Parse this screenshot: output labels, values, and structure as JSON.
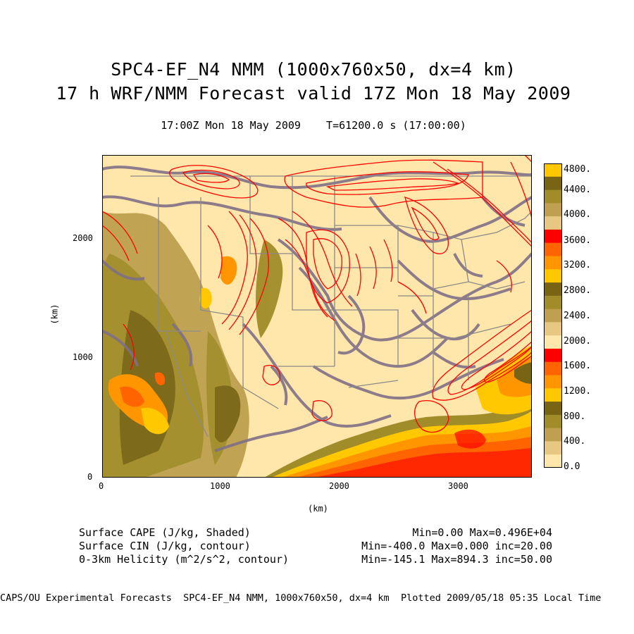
{
  "titles": {
    "line1": "SPC4-EF_N4 NMM (1000x760x50, dx=4 km)",
    "line2": "17 h WRF/NMM Forecast valid 17Z Mon 18 May 2009",
    "line3": "17:00Z Mon 18 May 2009    T=61200.0 s (17:00:00)"
  },
  "axes": {
    "x_label": "(km)",
    "y_label": "(km)",
    "x_ticks": [
      "0",
      "1000",
      "2000",
      "3000"
    ],
    "y_ticks": [
      "0",
      "1000",
      "2000"
    ]
  },
  "colorbar": {
    "labels": [
      "4800.",
      "4400.",
      "4000.",
      "3600.",
      "3200.",
      "2800.",
      "2400.",
      "2000.",
      "1600.",
      "1200.",
      "800.",
      "400.",
      "0.0"
    ],
    "colors_top_to_bottom": [
      "#ffc800",
      "#786414",
      "#a08c28",
      "#bea050",
      "#e6c882",
      "#ff0000",
      "#ff6400",
      "#ff9600",
      "#ffc800",
      "#786414",
      "#a08c28",
      "#bea050",
      "#e6c882",
      "#ffe6aa",
      "#ff0000",
      "#ff6400",
      "#ff9600",
      "#ffc800",
      "#786414",
      "#a08c28",
      "#bea050",
      "#e6c882",
      "#ffe6aa"
    ]
  },
  "fields": {
    "cape_label": "Surface CAPE (J/kg, Shaded)",
    "cape_stats": "Min=0.00 Max=0.496E+04",
    "cin_label": "Surface CIN (J/kg, contour)",
    "cin_stats": "Min=-400.0 Max=0.000 inc=20.00",
    "helicity_label": "0-3km Helicity (m^2/s^2, contour)",
    "helicity_stats": "Min=-145.1 Max=894.3 inc=50.00"
  },
  "credit": "CAPS/OU Experimental Forecasts  SPC4-EF_N4 NMM, 1000x760x50, dx=4 km  Plotted 2009/05/18 05:35 Local Time",
  "colors": {
    "background_fill": "#ffe6aa",
    "cin_contour": "#7f7088",
    "helicity_contour": "#ff0000",
    "boundary": "#8a8a8a"
  }
}
